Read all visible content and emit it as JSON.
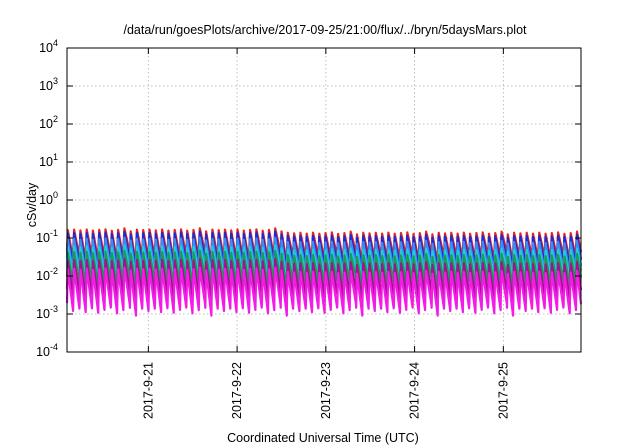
{
  "chart_data": {
    "type": "line",
    "title": "/data/run/goesPlots/archive/2017-09-25/21:00/flux/../bryn/5daysMars.plot",
    "xlabel": "Coordinated Universal Time (UTC)",
    "ylabel": "cSv/day",
    "yscale": "log",
    "ylim": [
      0.0001,
      10000
    ],
    "xlim": [
      "2017-09-20T02:00",
      "2017-09-25T21:00"
    ],
    "grid": true,
    "legend": "none",
    "y_ticks": [
      {
        "base": "10",
        "exp": "-4",
        "value": 0.0001
      },
      {
        "base": "10",
        "exp": "-3",
        "value": 0.001
      },
      {
        "base": "10",
        "exp": "-2",
        "value": 0.01
      },
      {
        "base": "10",
        "exp": "-1",
        "value": 0.1
      },
      {
        "base": "10",
        "exp": "0",
        "value": 1
      },
      {
        "base": "10",
        "exp": "1",
        "value": 10
      },
      {
        "base": "10",
        "exp": "2",
        "value": 100
      },
      {
        "base": "10",
        "exp": "3",
        "value": 1000
      },
      {
        "base": "10",
        "exp": "4",
        "value": 10000
      }
    ],
    "x_ticks": [
      {
        "label": "2017-9-21",
        "value": "2017-09-21T00:00"
      },
      {
        "label": "2017-9-22",
        "value": "2017-09-22T00:00"
      },
      {
        "label": "2017-9-23",
        "value": "2017-09-23T00:00"
      },
      {
        "label": "2017-9-24",
        "value": "2017-09-24T00:00"
      },
      {
        "label": "2017-9-25",
        "value": "2017-09-25T00:00"
      }
    ],
    "cycle_hours": 1.7,
    "series": [
      {
        "color": "#e8231d",
        "peak": 0.14,
        "trough": 0.028
      },
      {
        "color": "#1f2bd0",
        "peak": 0.115,
        "trough": 0.018
      },
      {
        "color": "#3f8bf0",
        "peak": 0.08,
        "trough": 0.012
      },
      {
        "color": "#16d2d6",
        "peak": 0.05,
        "trough": 0.009
      },
      {
        "color": "#1e9a58",
        "peak": 0.036,
        "trough": 0.006
      },
      {
        "color": "#a3128f",
        "peak": 0.022,
        "trough": 0.0028
      },
      {
        "color": "#f21ce6",
        "peak": 0.013,
        "trough": 0.0012
      }
    ]
  }
}
